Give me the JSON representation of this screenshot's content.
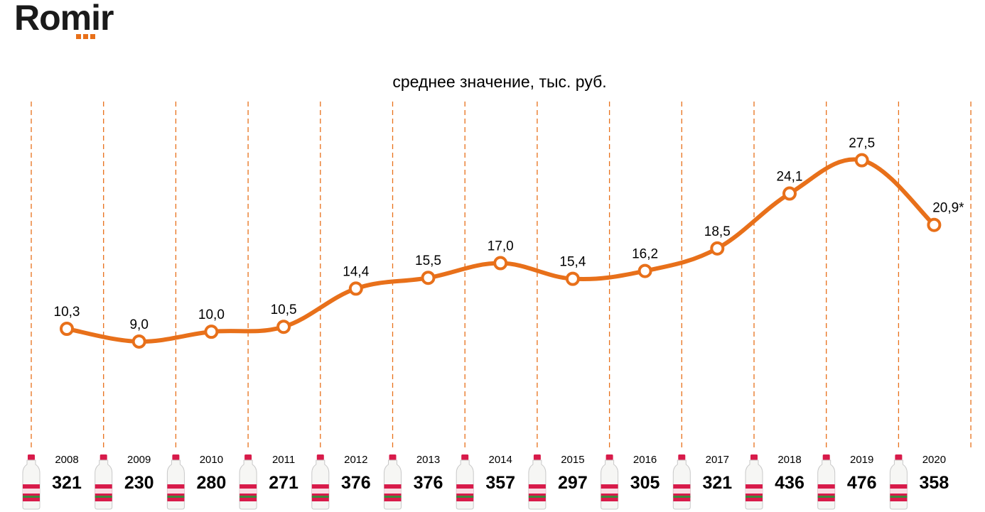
{
  "logo": {
    "text": "Romir",
    "accent": "#e8701a"
  },
  "chart_data": {
    "type": "line",
    "title": "среднее значение, тыс. руб.",
    "categories": [
      "2008",
      "2009",
      "2010",
      "2011",
      "2012",
      "2013",
      "2014",
      "2015",
      "2016",
      "2017",
      "2018",
      "2019",
      "2020"
    ],
    "values": [
      10.3,
      9.0,
      10.0,
      10.5,
      14.4,
      15.5,
      17.0,
      15.4,
      16.2,
      18.5,
      24.1,
      27.5,
      20.9
    ],
    "value_labels": [
      "10,3",
      "9,0",
      "10,0",
      "10,5",
      "14,4",
      "15,5",
      "17,0",
      "15,4",
      "16,2",
      "18,5",
      "24,1",
      "27,5",
      "20,9*"
    ],
    "bottle_counts": [
      "321",
      "230",
      "280",
      "271",
      "376",
      "376",
      "357",
      "297",
      "305",
      "321",
      "436",
      "476",
      "358"
    ],
    "ylim": [
      0,
      30
    ],
    "grid": "vertical dashed",
    "colors": {
      "line": "#e8701a",
      "grid": "#e8701a",
      "text": "#000000",
      "bottle_cap": "#d81b4a"
    },
    "icon": "milk-bottle-icon"
  }
}
